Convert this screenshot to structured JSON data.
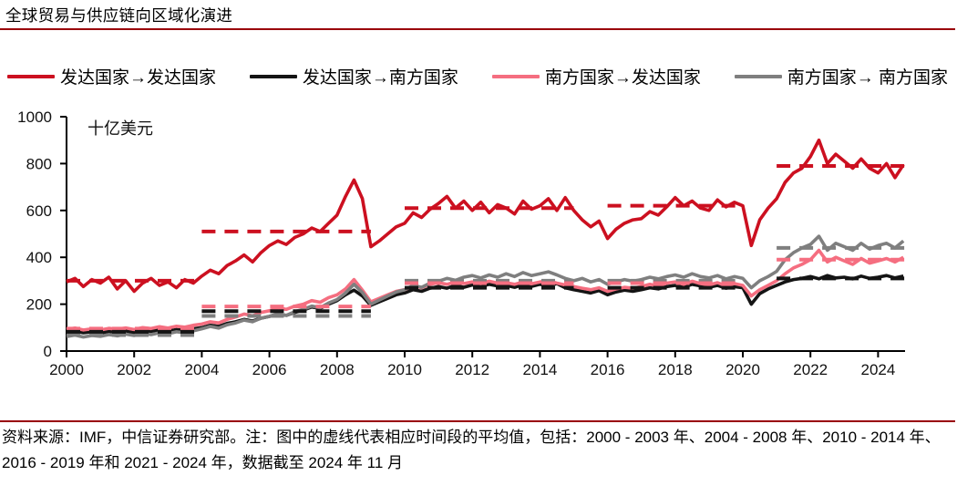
{
  "page": {
    "title": "全球贸易与供应链向区域化演进",
    "source_note": "资料来源：IMF，中信证券研究部。注：图中的虚线代表相应时间段的平均值，包括：2000 - 2003 年、2004 - 2008 年、2010 - 2014 年、2016 - 2019 年和 2021 - 2024 年，数据截至 2024 年 11 月"
  },
  "colors": {
    "rule_red": "#990008",
    "series_dd": "#CC1020",
    "series_ds": "#141414",
    "series_sd": "#F56E80",
    "series_ss": "#7F7F7F",
    "axis": "#000000"
  },
  "chart_data": {
    "type": "line",
    "title": "全球贸易与供应链向区域化演进",
    "unit_label": "十亿美元",
    "ylabel": "十亿美元",
    "xlabel": "",
    "ylim": [
      0,
      1000
    ],
    "xlim": [
      2000,
      2025
    ],
    "y_ticks": [
      0,
      200,
      400,
      600,
      800,
      1000
    ],
    "x_tick_years": [
      2000,
      2002,
      2004,
      2006,
      2008,
      2010,
      2012,
      2014,
      2016,
      2018,
      2020,
      2022,
      2024
    ],
    "grid": false,
    "legend_position": "top",
    "x_start": 2000,
    "x_step": 0.25,
    "series": [
      {
        "name": "发达国家→发达国家",
        "color_key": "series_dd",
        "values": [
          295,
          310,
          275,
          305,
          290,
          315,
          265,
          300,
          255,
          290,
          310,
          280,
          295,
          270,
          305,
          290,
          320,
          345,
          330,
          365,
          385,
          410,
          380,
          420,
          450,
          470,
          455,
          485,
          500,
          525,
          510,
          545,
          580,
          660,
          730,
          650,
          445,
          470,
          500,
          530,
          545,
          590,
          570,
          605,
          630,
          660,
          610,
          640,
          600,
          635,
          590,
          625,
          610,
          585,
          640,
          605,
          620,
          650,
          600,
          655,
          600,
          560,
          530,
          555,
          480,
          520,
          545,
          560,
          565,
          595,
          580,
          615,
          655,
          620,
          640,
          610,
          600,
          645,
          615,
          635,
          620,
          450,
          560,
          610,
          650,
          720,
          760,
          780,
          830,
          900,
          800,
          840,
          810,
          780,
          820,
          780,
          760,
          800,
          740,
          795
        ]
      },
      {
        "name": "发达国家→南方国家",
        "color_key": "series_ds",
        "values": [
          80,
          85,
          78,
          82,
          76,
          84,
          80,
          86,
          78,
          88,
          84,
          90,
          85,
          92,
          88,
          95,
          100,
          110,
          105,
          118,
          125,
          135,
          128,
          140,
          148,
          158,
          152,
          165,
          175,
          188,
          182,
          200,
          215,
          240,
          260,
          235,
          195,
          210,
          225,
          240,
          248,
          262,
          255,
          268,
          275,
          268,
          280,
          272,
          282,
          275,
          285,
          278,
          280,
          272,
          283,
          276,
          285,
          278,
          288,
          270,
          262,
          255,
          248,
          258,
          240,
          252,
          260,
          255,
          262,
          270,
          265,
          275,
          280,
          272,
          285,
          278,
          272,
          280,
          268,
          275,
          270,
          200,
          245,
          265,
          280,
          295,
          305,
          310,
          318,
          308,
          322,
          312,
          315,
          308,
          320,
          310,
          315,
          322,
          312,
          320
        ]
      },
      {
        "name": "南方国家→发达国家",
        "color_key": "series_sd",
        "values": [
          92,
          98,
          90,
          95,
          90,
          97,
          93,
          99,
          92,
          100,
          96,
          104,
          98,
          106,
          102,
          110,
          115,
          125,
          120,
          135,
          145,
          158,
          150,
          165,
          172,
          185,
          178,
          192,
          200,
          215,
          208,
          228,
          240,
          265,
          305,
          260,
          210,
          225,
          240,
          255,
          262,
          278,
          270,
          285,
          292,
          285,
          295,
          288,
          295,
          288,
          298,
          290,
          292,
          285,
          295,
          287,
          295,
          300,
          290,
          282,
          275,
          268,
          262,
          270,
          255,
          265,
          272,
          268,
          275,
          285,
          278,
          290,
          295,
          285,
          298,
          288,
          282,
          292,
          278,
          288,
          280,
          235,
          262,
          280,
          300,
          330,
          355,
          370,
          390,
          430,
          380,
          400,
          385,
          370,
          395,
          375,
          385,
          395,
          380,
          400
        ]
      },
      {
        "name": "南方国家→ 南方国家",
        "color_key": "series_ss",
        "values": [
          62,
          68,
          60,
          66,
          63,
          70,
          65,
          72,
          66,
          75,
          70,
          78,
          74,
          82,
          78,
          86,
          95,
          105,
          98,
          112,
          120,
          132,
          125,
          140,
          148,
          160,
          152,
          168,
          178,
          192,
          185,
          205,
          220,
          248,
          285,
          250,
          200,
          218,
          235,
          252,
          262,
          280,
          272,
          290,
          298,
          310,
          302,
          315,
          322,
          312,
          325,
          315,
          330,
          318,
          335,
          322,
          330,
          338,
          325,
          310,
          300,
          310,
          295,
          305,
          285,
          295,
          305,
          298,
          305,
          315,
          308,
          318,
          325,
          315,
          330,
          318,
          312,
          322,
          308,
          318,
          310,
          270,
          300,
          318,
          340,
          390,
          420,
          440,
          455,
          490,
          430,
          460,
          445,
          430,
          460,
          435,
          450,
          460,
          440,
          470
        ]
      }
    ],
    "averages": {
      "note": "虚线为各时间段平均值",
      "period_labels": [
        "2000-2003",
        "2004-2008",
        "2010-2014",
        "2016-2019",
        "2021-2024"
      ],
      "periods": [
        [
          2000,
          2004
        ],
        [
          2004,
          2009
        ],
        [
          2010,
          2015
        ],
        [
          2016,
          2020
        ],
        [
          2021,
          2024.85
        ]
      ],
      "values": {
        "series_dd": [
          300,
          510,
          610,
          620,
          790
        ],
        "series_ds": [
          82,
          170,
          270,
          270,
          310
        ],
        "series_sd": [
          96,
          190,
          290,
          290,
          390
        ],
        "series_ss": [
          68,
          150,
          300,
          300,
          440
        ]
      }
    }
  }
}
